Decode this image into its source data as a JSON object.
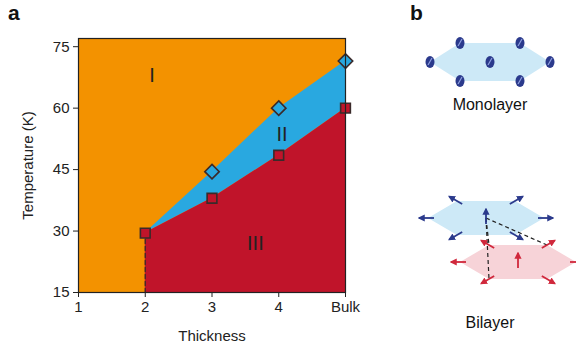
{
  "chart_data": {
    "type": "area",
    "panel_label": "a",
    "x_label": "Thickness",
    "y_label": "Temperature (K)",
    "xlim": [
      1,
      5
    ],
    "ylim": [
      15,
      77
    ],
    "xticks": [
      1,
      2,
      3,
      4,
      {
        "value": 5,
        "label": "Bulk"
      }
    ],
    "yticks": [
      15,
      30,
      45,
      60,
      75
    ],
    "series": [
      {
        "type": "line",
        "line_style": "dashed",
        "color": "#3a2a2a",
        "x": [
          2,
          2
        ],
        "values": [
          15,
          29.5
        ]
      },
      {
        "type": "scatter",
        "marker": "diamond",
        "color": "#29a8e0",
        "x": [
          3,
          4,
          5
        ],
        "values": [
          44.5,
          60,
          71.5
        ]
      },
      {
        "type": "scatter",
        "marker": "square",
        "color": "#c0142a",
        "x": [
          2,
          3,
          4,
          5
        ],
        "values": [
          29.5,
          38,
          48.5,
          60
        ]
      }
    ],
    "phases": [
      {
        "label": "I",
        "color": "#f39200",
        "x": 2.1,
        "y": 68
      },
      {
        "label": "II",
        "color": "#29a8e0",
        "x": 4.05,
        "y": 53.5
      },
      {
        "label": "III",
        "color": "#c0142a",
        "x": 3.65,
        "y": 27
      }
    ]
  },
  "diagram": {
    "panel_label": "b",
    "panels": [
      {
        "label": "Monolayer"
      },
      {
        "label": "Bilayer"
      }
    ]
  }
}
